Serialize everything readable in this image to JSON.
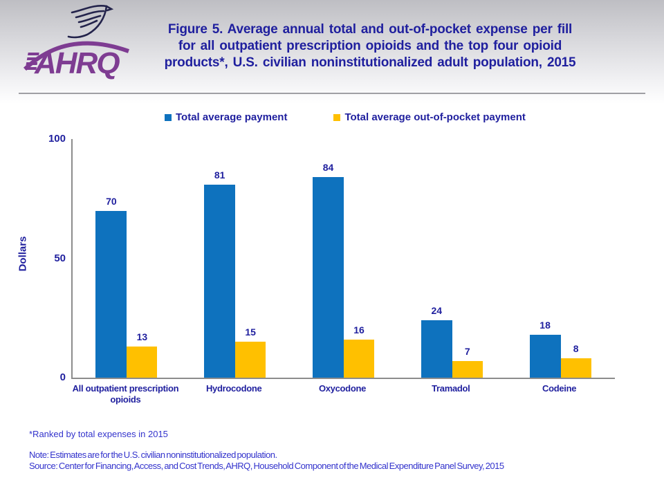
{
  "header": {
    "logo_text": "AHRQ",
    "title_lines": [
      "Figure 5. Average annual total and out-of-pocket expense per fill",
      "for all outpatient prescription opioids and the top four opioid",
      "products*, U.S. civilian noninstitutionalized adult population, 2015"
    ]
  },
  "legend": {
    "items": [
      {
        "label": "Total average payment",
        "color": "#0e72be"
      },
      {
        "label": "Total average out-of-pocket payment",
        "color": "#ffc000"
      }
    ]
  },
  "chart_data": {
    "type": "bar",
    "title": "Figure 5. Average annual total and out-of-pocket expense per fill for all outpatient prescription opioids and the top four opioid products*, U.S. civilian noninstitutionalized adult population, 2015",
    "categories": [
      "All outpatient prescription opioids",
      "Hydrocodone",
      "Oxycodone",
      "Tramadol",
      "Codeine"
    ],
    "series": [
      {
        "name": "Total average payment",
        "color": "#0e72be",
        "values": [
          70,
          81,
          84,
          24,
          18
        ]
      },
      {
        "name": "Total average out-of-pocket payment",
        "color": "#ffc000",
        "values": [
          13,
          15,
          16,
          7,
          8
        ]
      }
    ],
    "xlabel": "",
    "ylabel": "Dollars",
    "ylim": [
      0,
      100
    ],
    "yticks": [
      0,
      50,
      100
    ],
    "grid": false,
    "legend_position": "top",
    "value_labels": true
  },
  "footnotes": {
    "ranked": "*Ranked by total expenses in 2015",
    "note": "Note: Estimates are for the U.S. civilian noninstitutionalized population.",
    "source": "Source: Center for Financing, Access, and Cost Trends, AHRQ, Household Component of the Medical Expenditure Panel Survey, 2015"
  },
  "colors": {
    "title_navy": "#1f1f9e",
    "footnote_blue": "#3333cc",
    "axis_gray": "#8c8c8c",
    "logo_purple": "#7e3c92",
    "eagle_navy": "#23234b"
  }
}
